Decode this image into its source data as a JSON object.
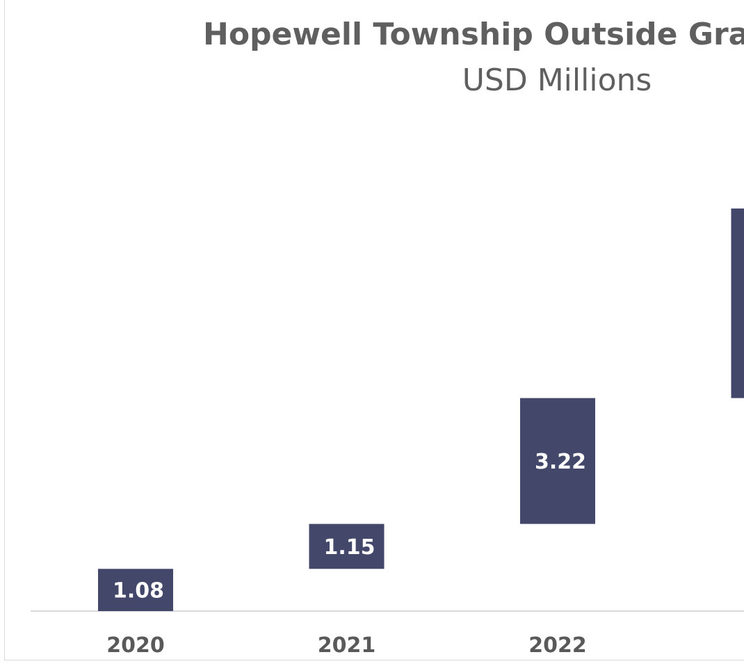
{
  "chart_data": {
    "type": "bar",
    "subtype": "waterfall",
    "title": "Hopewell Township Outside Grant",
    "subtitle": "USD Millions",
    "categories": [
      "2020",
      "2021",
      "2022",
      ""
    ],
    "values": [
      1.08,
      1.15,
      3.22,
      4.85
    ],
    "data_labels": [
      "1.08",
      "1.15",
      "3.22",
      ""
    ],
    "ylim": [
      0,
      13.5
    ],
    "xlabel": "",
    "ylabel": "",
    "grid": false,
    "legend": "none",
    "colors": {
      "bar": "#43476a",
      "axis": "#d9d9d9",
      "text": "#5f5f5f",
      "tick": "#595959",
      "label": "#ffffff"
    }
  }
}
